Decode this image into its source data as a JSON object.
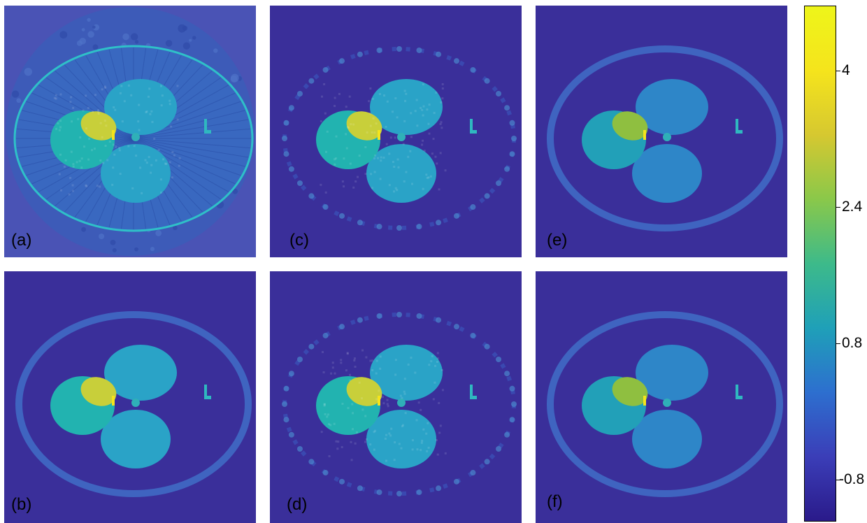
{
  "panels": [
    {
      "label": "(a)",
      "variant": "noisy"
    },
    {
      "label": "(b)",
      "variant": "clean"
    },
    {
      "label": "(c)",
      "variant": "sparse"
    },
    {
      "label": "(d)",
      "variant": "sparse"
    },
    {
      "label": "(e)",
      "variant": "smooth"
    },
    {
      "label": "(f)",
      "variant": "smooth"
    }
  ],
  "colorbar": {
    "ticks": [
      {
        "label": "4",
        "value": 4
      },
      {
        "label": "2.4",
        "value": 2.4
      },
      {
        "label": "0.8",
        "value": 0.8
      },
      {
        "label": "-0.8",
        "value": -0.8
      }
    ],
    "range": [
      -1.4,
      4.9
    ],
    "colors": [
      "#2a1a8a",
      "#3b3eb8",
      "#2d6fcf",
      "#1fa0b8",
      "#3dba8a",
      "#8ac84a",
      "#d6c830",
      "#f5e41c",
      "#eef51a"
    ]
  },
  "colors": {
    "background_dark": "#3a2f9a",
    "background_a": "#4a53b5",
    "lobe": "#2aa3c7",
    "lobe_left": "#22b3b0",
    "highlight": "#c8cf3a",
    "ring": "#3f64c0"
  }
}
